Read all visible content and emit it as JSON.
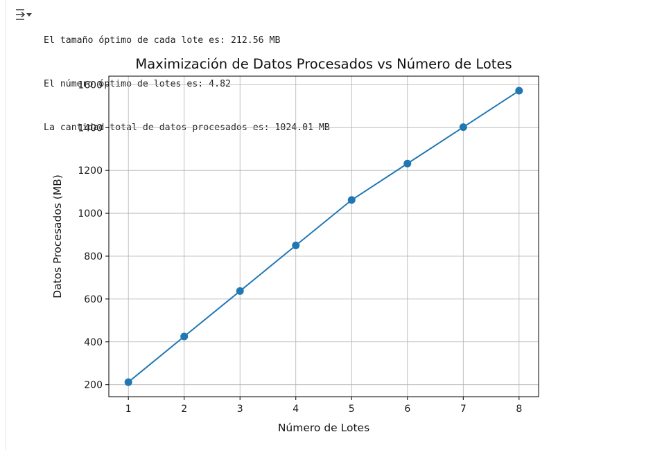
{
  "output": {
    "toggle_icon": "output-collapse-icon",
    "lines": [
      "El tamaño óptimo de cada lote es: 212.56 MB",
      "El número óptimo de lotes es: 4.82",
      "La cantidad total de datos procesados es: 1024.01 MB"
    ]
  },
  "chart_data": {
    "type": "line",
    "title": "Maximización de Datos Procesados vs Número de Lotes",
    "xlabel": "Número de Lotes",
    "ylabel": "Datos Procesados (MB)",
    "x": [
      1,
      2,
      3,
      4,
      5,
      6,
      7,
      8
    ],
    "series": [
      {
        "values": [
          212,
          425,
          637,
          850,
          1062,
          1232,
          1402,
          1572
        ]
      }
    ],
    "xticks": [
      "1",
      "2",
      "3",
      "4",
      "5",
      "6",
      "7",
      "8"
    ],
    "yticks": [
      "200",
      "400",
      "600",
      "800",
      "1000",
      "1200",
      "1400",
      "1600"
    ],
    "xlim": [
      0.65,
      8.35
    ],
    "ylim": [
      144,
      1640
    ],
    "grid": true,
    "markers": true,
    "color": "#1f77b4"
  }
}
